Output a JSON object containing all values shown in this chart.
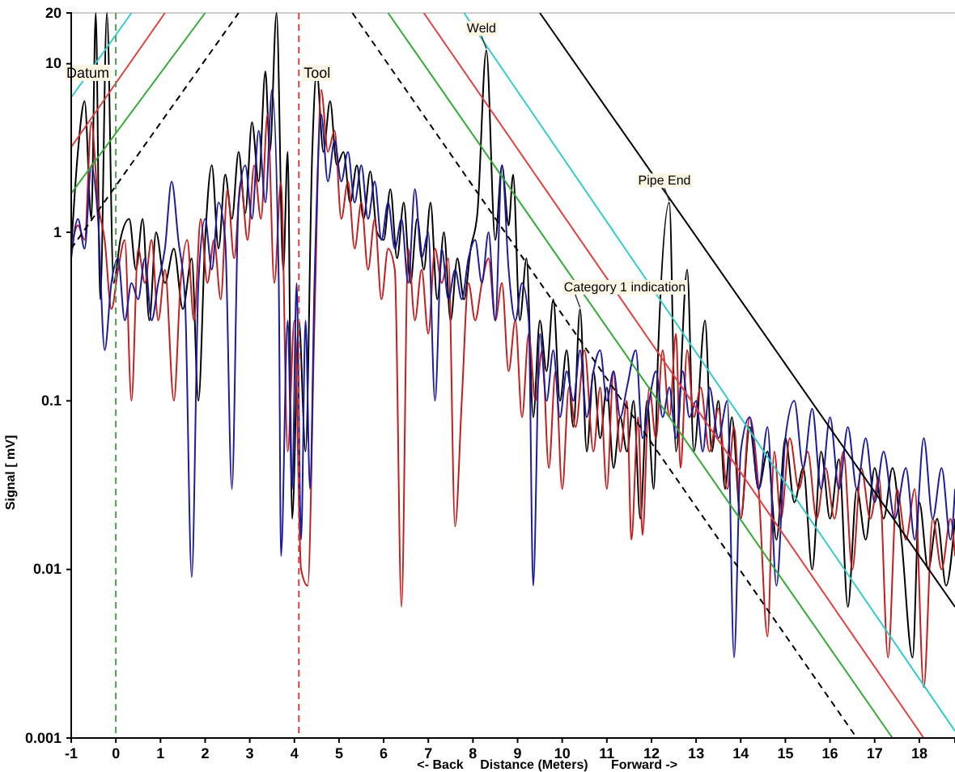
{
  "chart_data": {
    "type": "line",
    "xlabel": "Distance (Meters)",
    "ylabel": "Signal [ mV]",
    "log": "y",
    "xlim": [
      -1,
      18.8
    ],
    "ylim": [
      0.001,
      20
    ],
    "xticks": [
      -1,
      0,
      1,
      2,
      3,
      4,
      5,
      6,
      7,
      8,
      9,
      10,
      11,
      12,
      13,
      14,
      15,
      16,
      17,
      18
    ],
    "yticks": [
      0.001,
      0.01,
      0.1,
      1,
      10,
      20
    ],
    "grid": false,
    "marker": "none",
    "series": [
      {
        "color": "#000000",
        "x": [
          -1,
          -0.85,
          -0.7,
          -0.55,
          -0.45,
          -0.35,
          -0.2,
          -0.05,
          0.1,
          0.3,
          0.45,
          0.6,
          0.75,
          0.9,
          1.1,
          1.3,
          1.5,
          1.7,
          1.85,
          2.0,
          2.15,
          2.3,
          2.45,
          2.6,
          2.75,
          2.9,
          3.05,
          3.2,
          3.35,
          3.45,
          3.6,
          3.75,
          3.85,
          3.95,
          4.1,
          4.25,
          4.4,
          4.5,
          4.65,
          4.8,
          4.95,
          5.1,
          5.25,
          5.4,
          5.55,
          5.7,
          5.85,
          6.0,
          6.15,
          6.3,
          6.45,
          6.6,
          6.75,
          6.9,
          7.05,
          7.2,
          7.35,
          7.5,
          7.65,
          7.8,
          7.95,
          8.1,
          8.3,
          8.5,
          8.65,
          8.8,
          8.9,
          9.05,
          9.2,
          9.35,
          9.5,
          9.65,
          9.8,
          9.95,
          10.1,
          10.25,
          10.4,
          10.55,
          10.7,
          10.85,
          11.0,
          11.15,
          11.3,
          11.45,
          11.6,
          11.75,
          11.9,
          12.05,
          12.15,
          12.4,
          12.55,
          12.8,
          12.95,
          13.2,
          13.35,
          13.5,
          13.65,
          13.8,
          14.0,
          14.2,
          14.4,
          14.6,
          14.8,
          15.0,
          15.2,
          15.4,
          15.6,
          15.8,
          16.0,
          16.2,
          16.4,
          16.6,
          16.8,
          17.0,
          17.2,
          17.4,
          17.6,
          17.85,
          18.0,
          18.2,
          18.4,
          18.6,
          18.8
        ],
        "values": [
          0.8,
          3,
          6,
          1.2,
          20,
          0.4,
          20,
          0.5,
          0.9,
          1.2,
          0.6,
          1.2,
          0.3,
          1.0,
          0.5,
          0.8,
          0.35,
          0.7,
          0.1,
          0.9,
          2.5,
          0.8,
          2.2,
          1.2,
          3,
          1.3,
          4.5,
          2,
          9,
          3,
          20,
          0.6,
          3,
          0.02,
          0.3,
          0.05,
          3,
          9,
          3,
          6,
          2.5,
          3,
          1.5,
          2.5,
          1.2,
          2.3,
          1,
          0.9,
          1.8,
          0.7,
          1.5,
          0.5,
          1.2,
          0.6,
          1.5,
          0.4,
          1.0,
          0.3,
          0.7,
          0.4,
          0.8,
          1.3,
          12,
          0.9,
          2.5,
          1.1,
          2.2,
          0.3,
          0.7,
          0.08,
          0.3,
          0.15,
          0.4,
          0.1,
          0.2,
          0.07,
          0.35,
          0.05,
          0.15,
          0.06,
          0.12,
          0.04,
          0.08,
          0.05,
          0.1,
          0.02,
          0.1,
          0.03,
          0.2,
          1.5,
          0.05,
          0.6,
          0.05,
          0.3,
          0.05,
          0.1,
          0.03,
          0.08,
          0.02,
          0.07,
          0.03,
          0.05,
          0.015,
          0.06,
          0.025,
          0.04,
          0.01,
          0.05,
          0.02,
          0.045,
          0.006,
          0.03,
          0.015,
          0.04,
          0.02,
          0.04,
          0.015,
          0.003,
          0.025,
          0.01,
          0.02,
          0.008,
          0.02
        ]
      },
      {
        "color": "#c41e1e",
        "x": [
          -1,
          -0.85,
          -0.7,
          -0.55,
          -0.4,
          -0.25,
          -0.1,
          0.05,
          0.2,
          0.35,
          0.5,
          0.65,
          0.8,
          0.95,
          1.1,
          1.3,
          1.45,
          1.6,
          1.75,
          1.9,
          2.05,
          2.2,
          2.35,
          2.5,
          2.65,
          2.8,
          2.95,
          3.1,
          3.25,
          3.4,
          3.55,
          3.7,
          3.85,
          4.0,
          4.15,
          4.3,
          4.45,
          4.6,
          4.75,
          4.9,
          5.05,
          5.2,
          5.35,
          5.5,
          5.65,
          5.8,
          5.95,
          6.1,
          6.25,
          6.4,
          6.55,
          6.7,
          6.85,
          7.0,
          7.15,
          7.3,
          7.45,
          7.6,
          7.75,
          7.9,
          8.05,
          8.2,
          8.35,
          8.5,
          8.65,
          8.8,
          8.95,
          9.1,
          9.25,
          9.4,
          9.55,
          9.7,
          9.85,
          10.0,
          10.15,
          10.3,
          10.5,
          10.7,
          10.85,
          11.0,
          11.15,
          11.3,
          11.45,
          11.55,
          11.7,
          11.8,
          11.95,
          12.1,
          12.25,
          12.4,
          12.55,
          12.65,
          12.8,
          12.95,
          13.1,
          13.3,
          13.5,
          13.7,
          13.85,
          14.0,
          14.2,
          14.4,
          14.6,
          14.75,
          14.9,
          15.1,
          15.3,
          15.5,
          15.7,
          15.9,
          16.1,
          16.3,
          16.5,
          16.7,
          16.9,
          17.1,
          17.3,
          17.5,
          17.7,
          17.9,
          18.1,
          18.3,
          18.5,
          18.7,
          18.8
        ],
        "values": [
          0.8,
          1.1,
          0.9,
          4.5,
          1.5,
          0.9,
          0.35,
          0.6,
          0.9,
          0.1,
          0.8,
          0.5,
          0.9,
          0.3,
          0.6,
          0.1,
          0.5,
          0.9,
          0.3,
          1.2,
          0.5,
          0.9,
          0.4,
          1.8,
          0.7,
          2.0,
          0.9,
          2.5,
          1.2,
          5,
          0.5,
          2,
          0.05,
          0.3,
          0.01,
          0.008,
          0.3,
          7,
          3,
          4,
          1.2,
          2,
          0.8,
          1.5,
          0.6,
          1.2,
          0.4,
          0.8,
          0.6,
          0.006,
          0.8,
          0.3,
          0.6,
          0.25,
          0.8,
          0.5,
          0.7,
          0.018,
          0.1,
          0.5,
          0.3,
          0.5,
          0.7,
          0.3,
          0.5,
          0.15,
          0.3,
          0.08,
          0.25,
          0.1,
          0.2,
          0.04,
          0.15,
          0.03,
          0.12,
          0.07,
          0.2,
          0.05,
          0.12,
          0.03,
          0.15,
          0.05,
          0.1,
          0.015,
          0.08,
          0.016,
          0.12,
          0.06,
          0.2,
          0.08,
          0.25,
          0.04,
          0.2,
          0.08,
          0.12,
          0.05,
          0.09,
          0.03,
          0.07,
          0.02,
          0.08,
          0.03,
          0.004,
          0.05,
          0.02,
          0.06,
          0.03,
          0.05,
          0.02,
          0.04,
          0.02,
          0.05,
          0.01,
          0.04,
          0.02,
          0.035,
          0.003,
          0.03,
          0.015,
          0.03,
          0.002,
          0.02,
          0.01,
          0.02,
          0.012
        ]
      },
      {
        "color": "#1c1ca0",
        "x": [
          -1,
          -0.85,
          -0.7,
          -0.55,
          -0.4,
          -0.25,
          -0.1,
          0.05,
          0.2,
          0.35,
          0.5,
          0.65,
          0.8,
          0.95,
          1.1,
          1.25,
          1.4,
          1.55,
          1.7,
          1.85,
          2.0,
          2.15,
          2.3,
          2.45,
          2.6,
          2.75,
          2.9,
          3.05,
          3.2,
          3.35,
          3.5,
          3.65,
          3.7,
          3.85,
          3.95,
          4.05,
          4.15,
          4.25,
          4.35,
          4.45,
          4.6,
          4.75,
          4.9,
          5.05,
          5.2,
          5.35,
          5.5,
          5.65,
          5.8,
          5.95,
          6.1,
          6.25,
          6.4,
          6.55,
          6.7,
          6.85,
          7.0,
          7.15,
          7.3,
          7.45,
          7.6,
          7.75,
          7.9,
          8.05,
          8.2,
          8.35,
          8.5,
          8.65,
          8.8,
          8.95,
          9.1,
          9.25,
          9.35,
          9.5,
          9.65,
          9.8,
          9.95,
          10.1,
          10.25,
          10.4,
          10.55,
          10.7,
          10.85,
          11.0,
          11.15,
          11.3,
          11.45,
          11.65,
          11.8,
          11.95,
          12.1,
          12.25,
          12.4,
          12.55,
          12.7,
          12.85,
          13.0,
          13.15,
          13.3,
          13.5,
          13.7,
          13.85,
          14.0,
          14.2,
          14.4,
          14.6,
          14.8,
          15.0,
          15.2,
          15.4,
          15.6,
          15.8,
          16.0,
          16.2,
          16.4,
          16.6,
          16.8,
          17.0,
          17.2,
          17.45,
          17.7,
          17.9,
          18.1,
          18.3,
          18.5,
          18.7,
          18.8
        ],
        "values": [
          0.7,
          1.2,
          0.8,
          2.5,
          1.2,
          0.2,
          0.5,
          0.7,
          0.3,
          0.5,
          0.4,
          0.7,
          0.3,
          0.5,
          0.8,
          2.0,
          0.9,
          0.4,
          0.009,
          0.5,
          1.2,
          0.6,
          1.5,
          0.9,
          0.03,
          1.5,
          2.5,
          1.2,
          4,
          1.5,
          7,
          0.5,
          0.012,
          0.3,
          0.03,
          0.5,
          0.015,
          0.3,
          0.03,
          0.5,
          5,
          2,
          3.5,
          2,
          3,
          1.5,
          2.5,
          1.2,
          2,
          0.9,
          1.5,
          0.8,
          1.2,
          0.5,
          1.8,
          0.7,
          1.0,
          0.1,
          0.8,
          0.4,
          0.6,
          0.4,
          0.7,
          0.9,
          0.5,
          1.0,
          0.3,
          2.5,
          0.6,
          0.3,
          0.5,
          0.3,
          0.008,
          0.25,
          0.1,
          0.2,
          0.08,
          0.15,
          0.1,
          0.2,
          0.08,
          0.15,
          0.2,
          0.1,
          0.15,
          0.08,
          0.12,
          0.2,
          0.06,
          0.1,
          0.15,
          0.08,
          0.12,
          0.06,
          0.15,
          0.08,
          0.1,
          0.05,
          0.12,
          0.06,
          0.1,
          0.003,
          0.05,
          0.08,
          0.03,
          0.07,
          0.008,
          0.06,
          0.1,
          0.04,
          0.09,
          0.03,
          0.08,
          0.03,
          0.07,
          0.03,
          0.06,
          0.025,
          0.05,
          0.02,
          0.04,
          0.015,
          0.06,
          0.02,
          0.04,
          0.015,
          0.03
        ]
      },
      {
        "color": "#000000",
        "x": [
          9.5,
          18.8
        ],
        "values": [
          20,
          0.006
        ]
      },
      {
        "color": "#33cccc",
        "x": [
          7.8,
          18.8
        ],
        "values": [
          20,
          0.0011
        ]
      },
      {
        "color": "#e04040",
        "x": [
          6.9,
          18.1
        ],
        "values": [
          20,
          0.001
        ]
      },
      {
        "color": "#33aa33",
        "x": [
          6.1,
          17.4
        ],
        "values": [
          20,
          0.001
        ]
      },
      {
        "color": "#000000",
        "line_style": "dashed",
        "x": [
          5.3,
          16.6
        ],
        "values": [
          20,
          0.001
        ]
      },
      {
        "color": "#000000",
        "line_style": "dashed",
        "x": [
          -1,
          2.75
        ],
        "values": [
          0.8,
          20
        ]
      },
      {
        "color": "#33aa33",
        "x": [
          -1,
          2.0
        ],
        "values": [
          1.7,
          20
        ]
      },
      {
        "color": "#e04040",
        "x": [
          -1,
          1.1
        ],
        "values": [
          3.2,
          20
        ]
      },
      {
        "color": "#33cccc",
        "x": [
          -1,
          0.35
        ],
        "values": [
          6.3,
          20
        ]
      }
    ],
    "ref_lines": [
      {
        "axis": "x",
        "value": 0,
        "label": "Datum",
        "color": "#559955",
        "line_style": "dashed"
      },
      {
        "axis": "x",
        "value": 4.1,
        "label": "Tool",
        "color": "#cc4444",
        "line_style": "dashed"
      }
    ],
    "annotations": [
      "<- Back",
      "Forward ->",
      {
        "text": "Weld",
        "x": 8.3,
        "y": 12
      },
      {
        "text": "Category 1 indication",
        "x": 10.4,
        "y": 0.35
      },
      {
        "text": "Pipe End",
        "x": 12.4,
        "y": 1.5
      }
    ]
  }
}
